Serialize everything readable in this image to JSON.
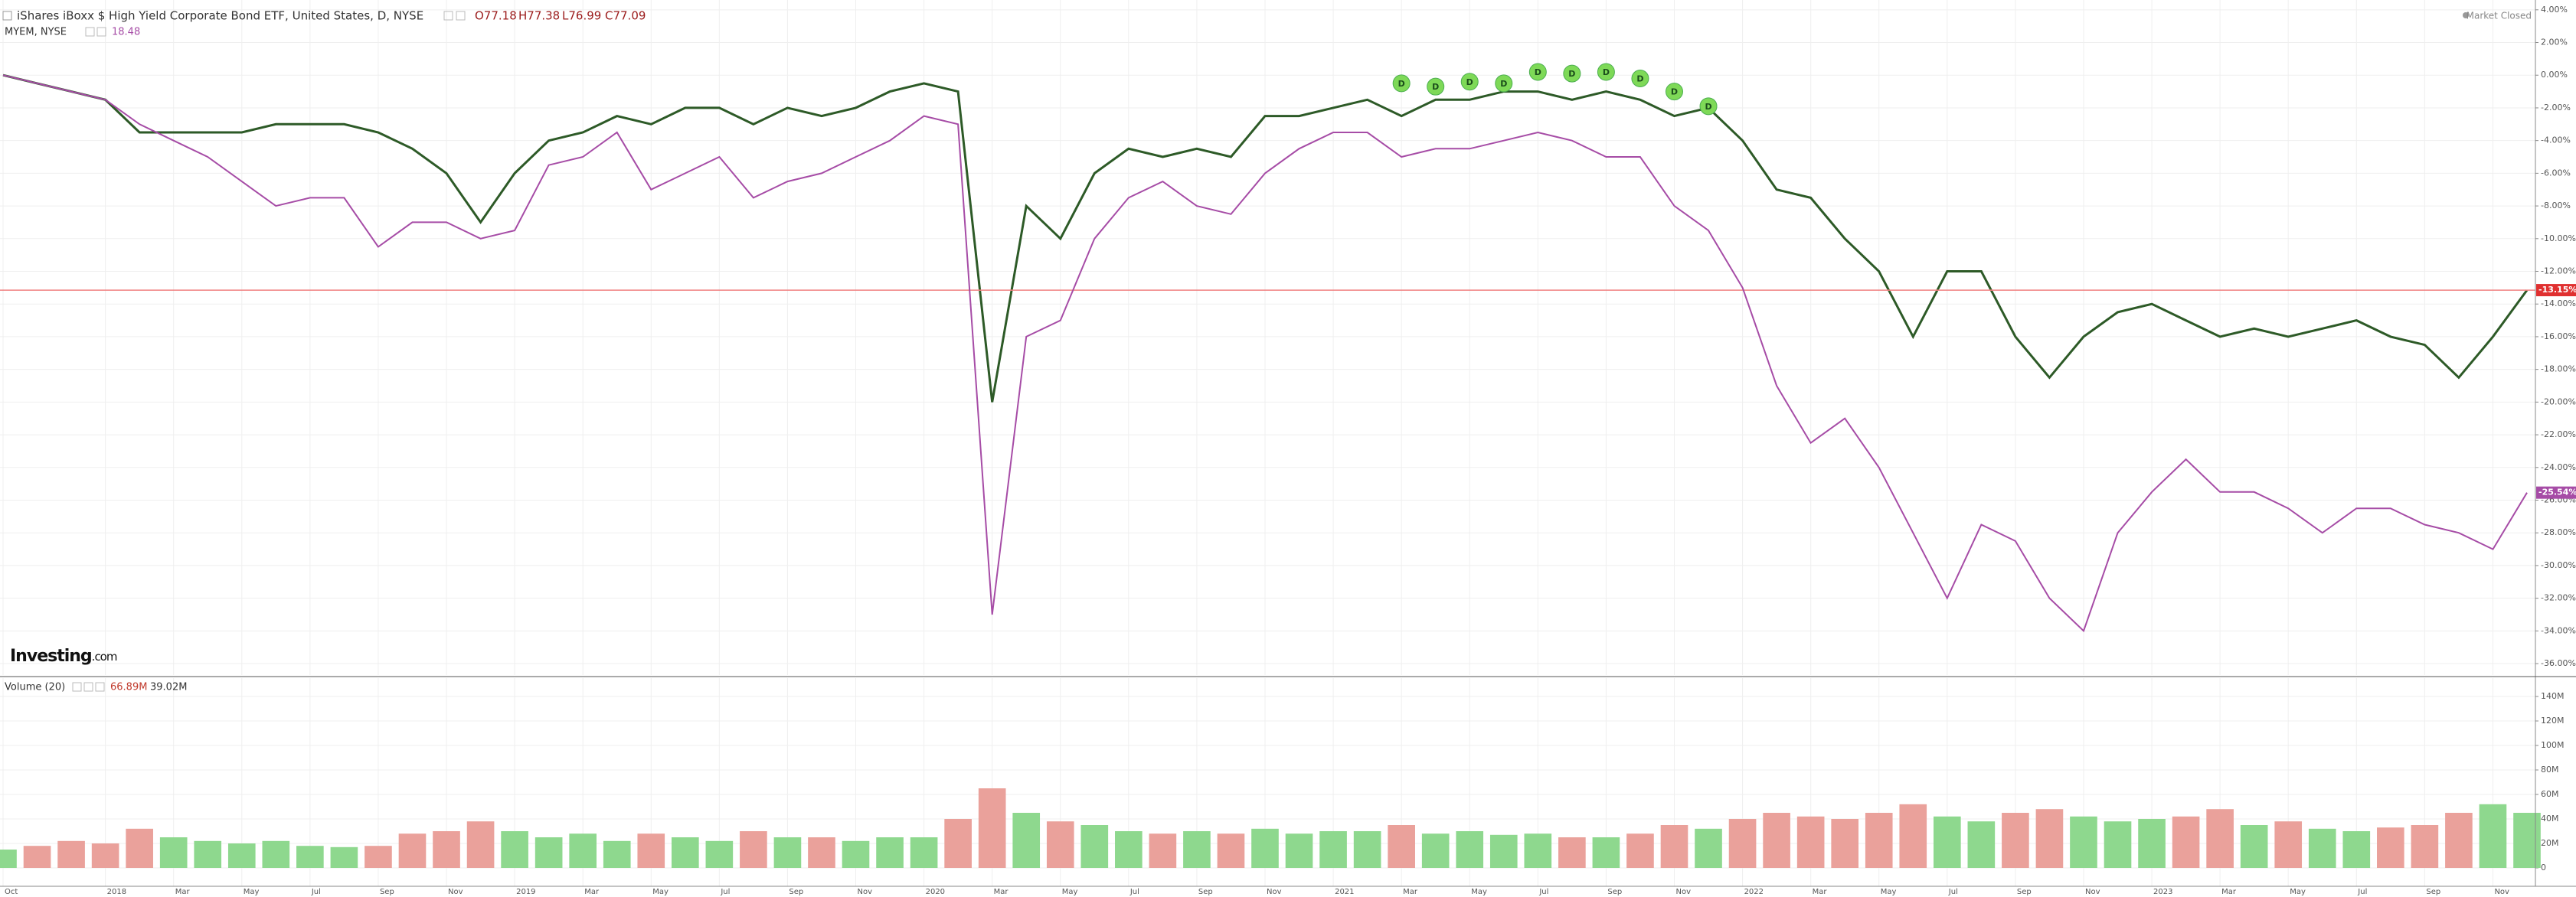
{
  "chart_data": [
    {
      "type": "line",
      "title": "iShares iBoxx $ High Yield Corporate Bond ETF, United States, D, NYSE",
      "ohlc": [
        "O77.18",
        "H77.38",
        "L76.99",
        "C77.09"
      ],
      "compare_label": "MYEM, NYSE",
      "compare_value": "18.48",
      "status": "Market Closed",
      "logo": "Investing",
      "logo_suffix": ".com",
      "x": [
        "2017-10",
        "2017-11",
        "2017-12",
        "2018-01",
        "2018-02",
        "2018-03",
        "2018-04",
        "2018-05",
        "2018-06",
        "2018-07",
        "2018-08",
        "2018-09",
        "2018-10",
        "2018-11",
        "2018-12",
        "2019-01",
        "2019-02",
        "2019-03",
        "2019-04",
        "2019-05",
        "2019-06",
        "2019-07",
        "2019-08",
        "2019-09",
        "2019-10",
        "2019-11",
        "2019-12",
        "2020-01",
        "2020-02",
        "2020-03",
        "2020-04",
        "2020-05",
        "2020-06",
        "2020-07",
        "2020-08",
        "2020-09",
        "2020-10",
        "2020-11",
        "2020-12",
        "2021-01",
        "2021-02",
        "2021-03",
        "2021-04",
        "2021-05",
        "2021-06",
        "2021-07",
        "2021-08",
        "2021-09",
        "2021-10",
        "2021-11",
        "2021-12",
        "2022-01",
        "2022-02",
        "2022-03",
        "2022-04",
        "2022-05",
        "2022-06",
        "2022-07",
        "2022-08",
        "2022-09",
        "2022-10",
        "2022-11",
        "2022-12",
        "2023-01",
        "2023-02",
        "2023-03",
        "2023-04",
        "2023-05",
        "2023-06",
        "2023-07",
        "2023-08",
        "2023-09",
        "2023-10",
        "2023-11",
        "2023-12"
      ],
      "series": [
        {
          "color": "#2d5a27",
          "line_color": "#f08080",
          "last_label": "-13.15%",
          "values": [
            0,
            -0.5,
            -1,
            -1.5,
            -3.5,
            -3.5,
            -3.5,
            -3.5,
            -3,
            -3,
            -3,
            -3.5,
            -4.5,
            -6,
            -9,
            -6,
            -4,
            -3.5,
            -2.5,
            -3,
            -2,
            -2,
            -3,
            -2,
            -2.5,
            -2,
            -1,
            -0.5,
            -1,
            -20,
            -8,
            -10,
            -6,
            -4.5,
            -5,
            -4.5,
            -5,
            -2.5,
            -2.5,
            -2,
            -1.5,
            -2.5,
            -1.5,
            -1.5,
            -1,
            -1,
            -1.5,
            -1,
            -1.5,
            -2.5,
            -2,
            -4,
            -7,
            -7.5,
            -10,
            -12,
            -16,
            -12,
            -12,
            -16,
            -18.5,
            -16,
            -14.5,
            -14,
            -15,
            -16,
            -15.5,
            -16,
            -15.5,
            -15,
            -16,
            -16.5,
            -18.5,
            -16,
            -13.15
          ]
        },
        {
          "color": "#a64ca6",
          "last_label": "-25.54%",
          "values": [
            0,
            -0.5,
            -1,
            -1.5,
            -3,
            -4,
            -5,
            -6.5,
            -8,
            -7.5,
            -7.5,
            -10.5,
            -9,
            -9,
            -10,
            -9.5,
            -5.5,
            -5,
            -3.5,
            -7,
            -6,
            -5,
            -7.5,
            -6.5,
            -6,
            -5,
            -4,
            -2.5,
            -3,
            -33,
            -16,
            -15,
            -10,
            -7.5,
            -6.5,
            -8,
            -8.5,
            -6,
            -4.5,
            -3.5,
            -3.5,
            -5,
            -4.5,
            -4.5,
            -4,
            -3.5,
            -4,
            -5,
            -5,
            -8,
            -9.5,
            -13,
            -19,
            -22.5,
            -21,
            -24,
            -28,
            -32,
            -27.5,
            -28.5,
            -32,
            -34,
            -28,
            -25.5,
            -23.5,
            -25.5,
            -25.5,
            -26.5,
            -28,
            -26.5,
            -26.5,
            -27.5,
            -28,
            -29,
            -25.54
          ]
        }
      ],
      "dividends": {
        "label": "D",
        "color": "#7ed957",
        "x": [
          "2021-03",
          "2021-04",
          "2021-05",
          "2021-06",
          "2021-07",
          "2021-08",
          "2021-09",
          "2021-10",
          "2021-11",
          "2021-12"
        ],
        "y": [
          -0.5,
          -0.7,
          -0.4,
          -0.5,
          0.2,
          0.1,
          0.2,
          -0.2,
          -1,
          -1.9
        ]
      },
      "xlim": [
        "2017-10",
        "2023-12"
      ],
      "ylim": [
        -36.7,
        4.6
      ],
      "yticks": [
        {
          "value": 4,
          "label": "4.00%"
        },
        {
          "value": 2,
          "label": "2.00%"
        },
        {
          "value": 0,
          "label": "0.00%"
        },
        {
          "value": -2,
          "label": "-2.00%"
        },
        {
          "value": -4,
          "label": "-4.00%"
        },
        {
          "value": -6,
          "label": "-6.00%"
        },
        {
          "value": -8,
          "label": "-8.00%"
        },
        {
          "value": -10,
          "label": "-10.00%"
        },
        {
          "value": -12,
          "label": "-12.00%"
        },
        {
          "value": -14,
          "label": "-14.00%"
        },
        {
          "value": -16,
          "label": "-16.00%"
        },
        {
          "value": -18,
          "label": "-18.00%"
        },
        {
          "value": -20,
          "label": "-20.00%"
        },
        {
          "value": -22,
          "label": "-22.00%"
        },
        {
          "value": -24,
          "label": "-24.00%"
        },
        {
          "value": -26,
          "label": "-26.00%"
        },
        {
          "value": -28,
          "label": "-28.00%"
        },
        {
          "value": -30,
          "label": "-30.00%"
        },
        {
          "value": -32,
          "label": "-32.00%"
        },
        {
          "value": -34,
          "label": "-34.00%"
        },
        {
          "value": -36,
          "label": "-36.00%"
        }
      ],
      "grid": true
    },
    {
      "type": "bar",
      "title": "Volume (20)",
      "readouts": [
        "66.89M",
        "39.02M"
      ],
      "up_color": "#8ed88e",
      "down_color": "#eaa19b",
      "x": [
        "2017-10",
        "2017-11",
        "2017-12",
        "2018-01",
        "2018-02",
        "2018-03",
        "2018-04",
        "2018-05",
        "2018-06",
        "2018-07",
        "2018-08",
        "2018-09",
        "2018-10",
        "2018-11",
        "2018-12",
        "2019-01",
        "2019-02",
        "2019-03",
        "2019-04",
        "2019-05",
        "2019-06",
        "2019-07",
        "2019-08",
        "2019-09",
        "2019-10",
        "2019-11",
        "2019-12",
        "2020-01",
        "2020-02",
        "2020-03",
        "2020-04",
        "2020-05",
        "2020-06",
        "2020-07",
        "2020-08",
        "2020-09",
        "2020-10",
        "2020-11",
        "2020-12",
        "2021-01",
        "2021-02",
        "2021-03",
        "2021-04",
        "2021-05",
        "2021-06",
        "2021-07",
        "2021-08",
        "2021-09",
        "2021-10",
        "2021-11",
        "2021-12",
        "2022-01",
        "2022-02",
        "2022-03",
        "2022-04",
        "2022-05",
        "2022-06",
        "2022-07",
        "2022-08",
        "2022-09",
        "2022-10",
        "2022-11",
        "2022-12",
        "2023-01",
        "2023-02",
        "2023-03",
        "2023-04",
        "2023-05",
        "2023-06",
        "2023-07",
        "2023-08",
        "2023-09",
        "2023-10",
        "2023-11",
        "2023-12"
      ],
      "values": [
        15000000,
        18000000,
        22000000,
        20000000,
        32000000,
        25000000,
        22000000,
        20000000,
        22000000,
        18000000,
        17000000,
        18000000,
        28000000,
        30000000,
        38000000,
        30000000,
        25000000,
        28000000,
        22000000,
        28000000,
        25000000,
        22000000,
        30000000,
        25000000,
        25000000,
        22000000,
        25000000,
        25000000,
        40000000,
        65000000,
        45000000,
        38000000,
        35000000,
        30000000,
        28000000,
        30000000,
        28000000,
        32000000,
        28000000,
        30000000,
        30000000,
        35000000,
        28000000,
        30000000,
        27000000,
        28000000,
        25000000,
        25000000,
        28000000,
        35000000,
        32000000,
        40000000,
        45000000,
        42000000,
        40000000,
        45000000,
        52000000,
        42000000,
        38000000,
        45000000,
        48000000,
        42000000,
        38000000,
        40000000,
        42000000,
        48000000,
        35000000,
        38000000,
        32000000,
        30000000,
        33000000,
        35000000,
        45000000,
        52000000,
        45000000
      ],
      "xlim": [
        "2017-10",
        "2023-12"
      ],
      "ylim": [
        -15000000,
        155000000
      ],
      "yticks": [
        0,
        {
          "value": 20000000,
          "label": "20M"
        },
        {
          "value": 40000000,
          "label": "40M"
        },
        {
          "value": 60000000,
          "label": "60M"
        },
        {
          "value": 80000000,
          "label": "80M"
        },
        {
          "value": 100000000,
          "label": "100M"
        },
        {
          "value": 120000000,
          "label": "120M"
        },
        {
          "value": 140000000,
          "label": "140M"
        }
      ],
      "xticks": [
        {
          "value": "2017-10",
          "label": "Oct"
        },
        {
          "value": "2018-01",
          "label": "2018"
        },
        {
          "value": "2018-03",
          "label": "Mar"
        },
        {
          "value": "2018-05",
          "label": "May"
        },
        {
          "value": "2018-07",
          "label": "Jul"
        },
        {
          "value": "2018-09",
          "label": "Sep"
        },
        {
          "value": "2018-11",
          "label": "Nov"
        },
        {
          "value": "2019-01",
          "label": "2019"
        },
        {
          "value": "2019-03",
          "label": "Mar"
        },
        {
          "value": "2019-05",
          "label": "May"
        },
        {
          "value": "2019-07",
          "label": "Jul"
        },
        {
          "value": "2019-09",
          "label": "Sep"
        },
        {
          "value": "2019-11",
          "label": "Nov"
        },
        {
          "value": "2020-01",
          "label": "2020"
        },
        {
          "value": "2020-03",
          "label": "Mar"
        },
        {
          "value": "2020-05",
          "label": "May"
        },
        {
          "value": "2020-07",
          "label": "Jul"
        },
        {
          "value": "2020-09",
          "label": "Sep"
        },
        {
          "value": "2020-11",
          "label": "Nov"
        },
        {
          "value": "2021-01",
          "label": "2021"
        },
        {
          "value": "2021-03",
          "label": "Mar"
        },
        {
          "value": "2021-05",
          "label": "May"
        },
        {
          "value": "2021-07",
          "label": "Jul"
        },
        {
          "value": "2021-09",
          "label": "Sep"
        },
        {
          "value": "2021-11",
          "label": "Nov"
        },
        {
          "value": "2022-01",
          "label": "2022"
        },
        {
          "value": "2022-03",
          "label": "Mar"
        },
        {
          "value": "2022-05",
          "label": "May"
        },
        {
          "value": "2022-07",
          "label": "Jul"
        },
        {
          "value": "2022-09",
          "label": "Sep"
        },
        {
          "value": "2022-11",
          "label": "Nov"
        },
        {
          "value": "2023-01",
          "label": "2023"
        },
        {
          "value": "2023-03",
          "label": "Mar"
        },
        {
          "value": "2023-05",
          "label": "May"
        },
        {
          "value": "2023-07",
          "label": "Jul"
        },
        {
          "value": "2023-09",
          "label": "Sep"
        },
        {
          "value": "2023-11",
          "label": "Nov"
        }
      ],
      "grid": true
    }
  ]
}
